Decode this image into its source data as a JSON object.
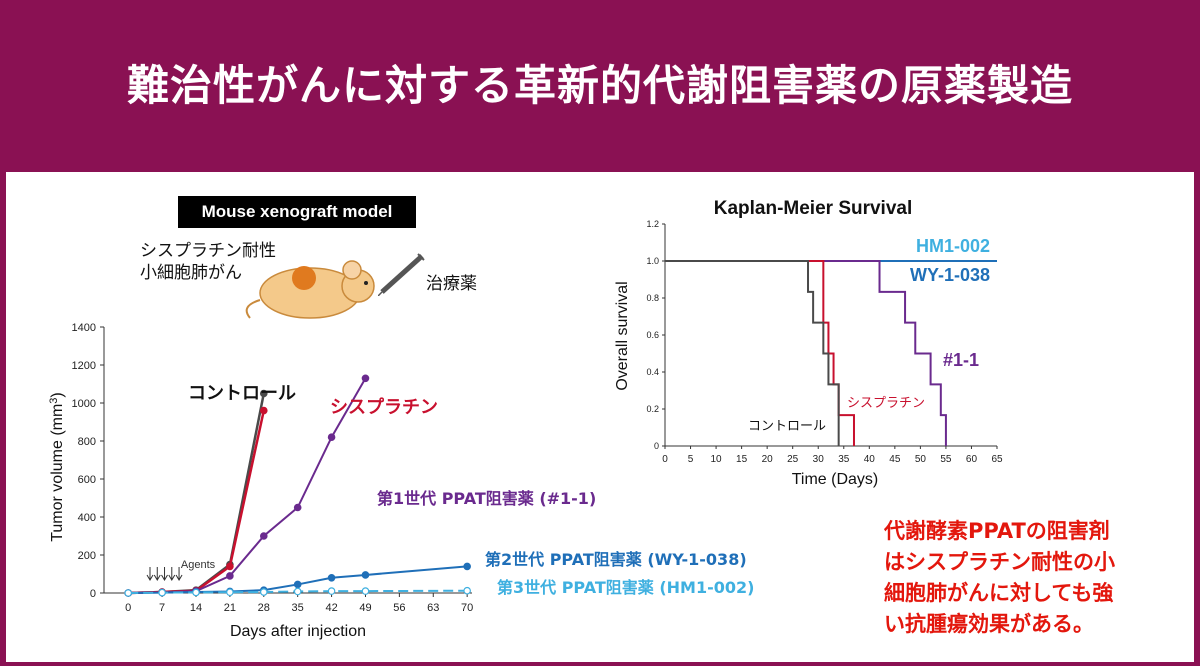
{
  "title": "難治性がんに対する革新的代謝阻害薬の原薬製造",
  "model_label": "Mouse xenograft model",
  "mouse_note_line1": "シスプラチン耐性",
  "mouse_note_line2": "小細胞肺がん",
  "drug_note": "治療薬",
  "description_lines": [
    "代謝酵素PPATの阻害剤",
    "はシスプラチン耐性の小",
    "細胞肺がんに対しても強",
    "い抗腫瘍効果がある。"
  ],
  "colors": {
    "banner": "#8a1153",
    "control": "#4a4a4a",
    "cisplatin": "#c8102e",
    "gen1": "#6a2a8e",
    "gen2": "#1f6fb8",
    "gen3": "#3fb0e0",
    "note": "#e3170d"
  },
  "chart_data": [
    {
      "type": "line",
      "xlabel": "Days after injection",
      "ylabel": "Tumor volume (mm",
      "ylabel_sup": "3",
      "ylabel_close": ")",
      "x": [
        0,
        7,
        14,
        21,
        28,
        35,
        42,
        49,
        70
      ],
      "xticks": [
        0,
        7,
        14,
        21,
        28,
        35,
        42,
        49,
        56,
        63,
        70
      ],
      "xtick_labels": [
        "0",
        "7",
        "14",
        "21",
        "28",
        "35",
        "42",
        "49",
        "56",
        "63",
        "70"
      ],
      "yticks": [
        0,
        200,
        400,
        600,
        800,
        1000,
        1200,
        1400
      ],
      "ylim": [
        0,
        1400
      ],
      "xlim": [
        -5,
        71
      ],
      "annotation": "Agents",
      "agent_days": [
        4.5,
        6,
        7.5,
        9,
        10.5
      ],
      "series": [
        {
          "name": "コントロール",
          "x": [
            0,
            7,
            14,
            21,
            28
          ],
          "values": [
            0,
            5,
            15,
            150,
            1050
          ]
        },
        {
          "name": "シスプラチン",
          "x": [
            0,
            7,
            14,
            21,
            28
          ],
          "values": [
            0,
            5,
            12,
            140,
            960
          ]
        },
        {
          "name": "第1世代 PPAT阻害薬 (#1-1)",
          "x": [
            0,
            7,
            14,
            21,
            28,
            35,
            42,
            49
          ],
          "values": [
            0,
            3,
            10,
            90,
            300,
            450,
            820,
            1130
          ]
        },
        {
          "name": "第2世代 PPAT阻害薬 (WY-1-038)",
          "x": [
            0,
            7,
            14,
            21,
            28,
            35,
            42,
            49,
            70
          ],
          "values": [
            0,
            2,
            5,
            8,
            15,
            45,
            80,
            95,
            140
          ]
        },
        {
          "name": "第3世代 PPAT阻害薬 (HM1-002)",
          "x": [
            0,
            7,
            14,
            21,
            28,
            35,
            42,
            49,
            70
          ],
          "values": [
            0,
            2,
            3,
            4,
            5,
            8,
            10,
            10,
            12
          ]
        }
      ]
    },
    {
      "type": "line",
      "title": "Kaplan-Meier Survival",
      "xlabel": "Time (Days)",
      "ylabel": "Overall survival",
      "xticks": [
        0,
        5,
        10,
        15,
        20,
        25,
        30,
        35,
        40,
        45,
        50,
        55,
        60,
        65
      ],
      "yticks": [
        0,
        0.2,
        0.4,
        0.6,
        0.8,
        1.0,
        1.2
      ],
      "ytick_labels": [
        "0",
        "0.2",
        "0.4",
        "0.6",
        "0.8",
        "1.0",
        "1.2"
      ],
      "xlim": [
        0,
        65
      ],
      "ylim": [
        0,
        1.2
      ],
      "series": [
        {
          "name": "HM1-002",
          "x": [
            0,
            65
          ],
          "values": [
            1,
            1
          ]
        },
        {
          "name": "WY-1-038",
          "x": [
            0,
            65
          ],
          "values": [
            1,
            1
          ]
        },
        {
          "name": "#1-1",
          "x": [
            0,
            42,
            42,
            47,
            47,
            49,
            49,
            52,
            52,
            54,
            54,
            55,
            55
          ],
          "values": [
            1,
            1,
            0.833,
            0.833,
            0.667,
            0.667,
            0.5,
            0.5,
            0.333,
            0.333,
            0.167,
            0.167,
            0
          ]
        },
        {
          "name": "シスプラチン",
          "x": [
            0,
            31,
            31,
            32,
            32,
            33,
            33,
            34,
            34,
            37,
            37
          ],
          "values": [
            1,
            1,
            0.667,
            0.667,
            0.5,
            0.5,
            0.333,
            0.333,
            0.167,
            0.167,
            0
          ]
        },
        {
          "name": "コントロール",
          "x": [
            0,
            28,
            28,
            29,
            29,
            31,
            31,
            32,
            32,
            34,
            34
          ],
          "values": [
            1,
            1,
            0.833,
            0.833,
            0.667,
            0.667,
            0.5,
            0.5,
            0.333,
            0.333,
            0
          ]
        }
      ]
    }
  ]
}
